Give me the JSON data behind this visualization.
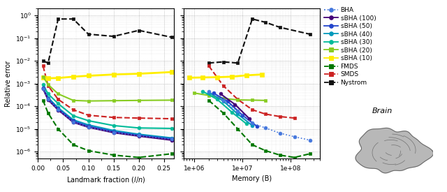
{
  "left_plot": {
    "xlabel": "Landmark fraction ($l/n$)",
    "ylabel": "Relative error",
    "xlim": [
      0.0,
      0.27
    ],
    "series": {
      "BHA": {
        "x": [
          0.01,
          0.02,
          0.04,
          0.07,
          0.1,
          0.15,
          0.2,
          0.265
        ],
        "y": [
          0.0006,
          0.0002,
          7e-05,
          2e-05,
          1.2e-05,
          7e-06,
          5e-06,
          3.5e-06
        ],
        "color": "#4477dd",
        "linestyle": "dotted",
        "marker": "o",
        "linewidth": 1.2,
        "markersize": 3.5
      },
      "sBHA_100": {
        "x": [
          0.01,
          0.02,
          0.04,
          0.07,
          0.1,
          0.15,
          0.2,
          0.265
        ],
        "y": [
          0.00058,
          0.00019,
          6.8e-05,
          1.95e-05,
          1.18e-05,
          6.8e-06,
          4.8e-06,
          3.2e-06
        ],
        "color": "#440077",
        "linestyle": "solid",
        "marker": "o",
        "linewidth": 1.5,
        "markersize": 3.5
      },
      "sBHA_50": {
        "x": [
          0.01,
          0.02,
          0.04,
          0.07,
          0.1,
          0.15,
          0.2,
          0.265
        ],
        "y": [
          0.00062,
          0.00021,
          7.5e-05,
          2.2e-05,
          1.3e-05,
          7.5e-06,
          5.2e-06,
          3.6e-06
        ],
        "color": "#2244cc",
        "linestyle": "solid",
        "marker": "o",
        "linewidth": 1.5,
        "markersize": 3.5
      },
      "sBHA_40": {
        "x": [
          0.01,
          0.02,
          0.04,
          0.07,
          0.1,
          0.15,
          0.2,
          0.265
        ],
        "y": [
          0.00065,
          0.00024,
          8.5e-05,
          2.5e-05,
          1.5e-05,
          8.5e-06,
          5.8e-06,
          4e-06
        ],
        "color": "#0099bb",
        "linestyle": "solid",
        "marker": "o",
        "linewidth": 1.5,
        "markersize": 3.5
      },
      "sBHA_30": {
        "x": [
          0.01,
          0.02,
          0.04,
          0.07,
          0.1,
          0.15,
          0.2,
          0.265
        ],
        "y": [
          0.0009,
          0.00035,
          0.00013,
          3.8e-05,
          2.3e-05,
          1.4e-05,
          1.1e-05,
          1.05e-05
        ],
        "color": "#00bb99",
        "linestyle": "solid",
        "marker": "o",
        "linewidth": 1.5,
        "markersize": 3.5
      },
      "sBHA_20": {
        "x": [
          0.01,
          0.02,
          0.04,
          0.07,
          0.1,
          0.15,
          0.2,
          0.265
        ],
        "y": [
          0.002,
          0.0009,
          0.00035,
          0.00018,
          0.00017,
          0.000175,
          0.00018,
          0.000185
        ],
        "color": "#88cc22",
        "linestyle": "solid",
        "marker": "s",
        "linewidth": 1.5,
        "markersize": 3.5
      },
      "sBHA_10": {
        "x": [
          0.01,
          0.02,
          0.04,
          0.07,
          0.1,
          0.15,
          0.2,
          0.265
        ],
        "y": [
          0.0018,
          0.0017,
          0.00175,
          0.002,
          0.0022,
          0.0025,
          0.0027,
          0.0032
        ],
        "color": "#ffee00",
        "linestyle": "solid",
        "marker": "s",
        "linewidth": 2.0,
        "markersize": 4.0
      },
      "FMDS": {
        "x": [
          0.01,
          0.02,
          0.04,
          0.07,
          0.1,
          0.15,
          0.2,
          0.265
        ],
        "y": [
          0.00018,
          5e-05,
          1e-05,
          2e-06,
          1.1e-06,
          7e-07,
          5.5e-07,
          8e-07
        ],
        "color": "#007700",
        "linestyle": "dashed",
        "marker": "s",
        "linewidth": 1.5,
        "markersize": 3.5
      },
      "SMDS": {
        "x": [
          0.01,
          0.02,
          0.04,
          0.07,
          0.1,
          0.15,
          0.2,
          0.265
        ],
        "y": [
          0.006,
          0.0008,
          0.0002,
          7e-05,
          4e-05,
          3.2e-05,
          3e-05,
          2.8e-05
        ],
        "color": "#cc2222",
        "linestyle": "dashed",
        "marker": "s",
        "linewidth": 1.5,
        "markersize": 3.5
      },
      "Nystrom": {
        "x": [
          0.01,
          0.02,
          0.04,
          0.07,
          0.1,
          0.15,
          0.2,
          0.265
        ],
        "y": [
          0.01,
          0.008,
          0.7,
          0.7,
          0.15,
          0.12,
          0.22,
          0.11
        ],
        "color": "#111111",
        "linestyle": "dashed",
        "marker": "s",
        "linewidth": 1.5,
        "markersize": 3.5
      }
    }
  },
  "right_plot": {
    "xlabel": "Memory (B)",
    "series": {
      "BHA": {
        "x": [
          2000000.0,
          4000000.0,
          8000000.0,
          16000000.0,
          30000000.0,
          60000000.0,
          120000000.0,
          250000000.0
        ],
        "y": [
          0.00045,
          0.00018,
          6e-05,
          1.8e-05,
          1.1e-05,
          6.5e-06,
          4.5e-06,
          3.2e-06
        ],
        "color": "#4477dd",
        "linestyle": "dotted",
        "marker": "o",
        "linewidth": 1.2,
        "markersize": 3.5
      },
      "sBHA_100": {
        "x": [
          3500000.0,
          7000000.0,
          14000000.0
        ],
        "y": [
          0.00035,
          0.00012,
          2.8e-05
        ],
        "color": "#440077",
        "linestyle": "solid",
        "marker": "o",
        "linewidth": 1.5,
        "markersize": 3.5
      },
      "sBHA_50": {
        "x": [
          2500000.0,
          5000000.0,
          10000000.0,
          20000000.0
        ],
        "y": [
          0.00038,
          0.00016,
          4e-05,
          1.3e-05
        ],
        "color": "#2244cc",
        "linestyle": "solid",
        "marker": "o",
        "linewidth": 1.5,
        "markersize": 3.5
      },
      "sBHA_40": {
        "x": [
          2000000.0,
          4000000.0,
          8000000.0,
          16000000.0
        ],
        "y": [
          0.0004,
          0.00017,
          4.5e-05,
          1.4e-05
        ],
        "color": "#0099bb",
        "linestyle": "solid",
        "marker": "o",
        "linewidth": 1.5,
        "markersize": 3.5
      },
      "sBHA_30": {
        "x": [
          1500000.0,
          3000000.0,
          6000000.0,
          12000000.0
        ],
        "y": [
          0.00045,
          0.0002,
          5.5e-05,
          1.7e-05
        ],
        "color": "#00bb99",
        "linestyle": "solid",
        "marker": "o",
        "linewidth": 1.5,
        "markersize": 3.5
      },
      "sBHA_20": {
        "x": [
          1000000.0,
          2000000.0,
          4000000.0,
          8000000.0,
          16000000.0,
          30000000.0
        ],
        "y": [
          0.00038,
          0.0003,
          0.00022,
          0.00019,
          0.000185,
          0.00018
        ],
        "color": "#88cc22",
        "linestyle": "solid",
        "marker": "s",
        "linewidth": 1.5,
        "markersize": 3.5
      },
      "sBHA_10": {
        "x": [
          800000.0,
          1500000.0,
          3000000.0,
          6000000.0,
          12000000.0,
          25000000.0
        ],
        "y": [
          0.0018,
          0.00185,
          0.0019,
          0.002,
          0.0023,
          0.0025
        ],
        "color": "#ffee00",
        "linestyle": "solid",
        "marker": "s",
        "linewidth": 2.0,
        "markersize": 4.0
      },
      "FMDS": {
        "x": [
          2000000.0,
          4000000.0,
          8000000.0,
          16000000.0,
          30000000.0,
          60000000.0,
          120000000.0,
          250000000.0
        ],
        "y": [
          0.00018,
          5e-05,
          1e-05,
          2e-06,
          1.1e-06,
          7e-07,
          5.5e-07,
          8e-07
        ],
        "color": "#007700",
        "linestyle": "dashed",
        "marker": "s",
        "linewidth": 1.5,
        "markersize": 3.5
      },
      "SMDS": {
        "x": [
          2000000.0,
          4000000.0,
          8000000.0,
          16000000.0,
          30000000.0,
          60000000.0,
          120000000.0
        ],
        "y": [
          0.006,
          0.0008,
          0.0002,
          7e-05,
          4.5e-05,
          3.5e-05,
          3e-05
        ],
        "color": "#cc2222",
        "linestyle": "dashed",
        "marker": "s",
        "linewidth": 1.5,
        "markersize": 3.5
      },
      "Nystrom": {
        "x": [
          2000000.0,
          4000000.0,
          8000000.0,
          16000000.0,
          30000000.0,
          60000000.0,
          250000000.0
        ],
        "y": [
          0.008,
          0.009,
          0.008,
          0.7,
          0.5,
          0.3,
          0.15
        ],
        "color": "#111111",
        "linestyle": "dashed",
        "marker": "s",
        "linewidth": 1.5,
        "markersize": 3.5
      }
    }
  },
  "legend_entries": [
    {
      "label": "BHA",
      "color": "#4477dd",
      "linestyle": "dotted",
      "marker": "o"
    },
    {
      "label": "sBHA (100)",
      "color": "#440077",
      "linestyle": "solid",
      "marker": "o"
    },
    {
      "label": "sBHA (50)",
      "color": "#2244cc",
      "linestyle": "solid",
      "marker": "o"
    },
    {
      "label": "sBHA (40)",
      "color": "#0099bb",
      "linestyle": "solid",
      "marker": "o"
    },
    {
      "label": "sBHA (30)",
      "color": "#00bb99",
      "linestyle": "solid",
      "marker": "o"
    },
    {
      "label": "sBHA (20)",
      "color": "#88cc22",
      "linestyle": "solid",
      "marker": "s"
    },
    {
      "label": "sBHA (10)",
      "color": "#ffee00",
      "linestyle": "solid",
      "marker": "s"
    },
    {
      "label": "FMDS",
      "color": "#007700",
      "linestyle": "dashed",
      "marker": "s"
    },
    {
      "label": "SMDS",
      "color": "#cc2222",
      "linestyle": "dashed",
      "marker": "s"
    },
    {
      "label": "Nystrom",
      "color": "#111111",
      "linestyle": "dashed",
      "marker": "s"
    }
  ],
  "ylim": [
    5e-07,
    2.0
  ],
  "fig_width": 6.4,
  "fig_height": 2.75,
  "bg_color": "#ffffff"
}
